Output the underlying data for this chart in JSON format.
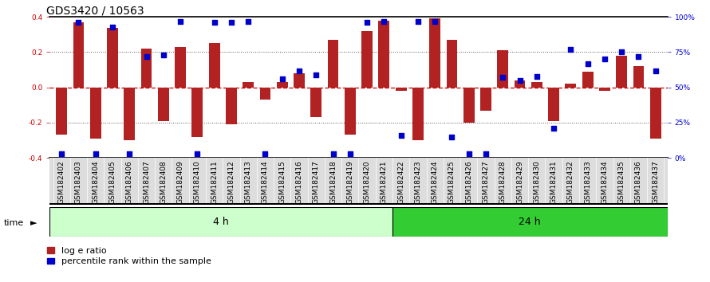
{
  "title": "GDS3420 / 10563",
  "samples": [
    "GSM182402",
    "GSM182403",
    "GSM182404",
    "GSM182405",
    "GSM182406",
    "GSM182407",
    "GSM182408",
    "GSM182409",
    "GSM182410",
    "GSM182411",
    "GSM182412",
    "GSM182413",
    "GSM182414",
    "GSM182415",
    "GSM182416",
    "GSM182417",
    "GSM182418",
    "GSM182419",
    "GSM182420",
    "GSM182421",
    "GSM182422",
    "GSM182423",
    "GSM182424",
    "GSM182425",
    "GSM182426",
    "GSM182427",
    "GSM182428",
    "GSM182429",
    "GSM182430",
    "GSM182431",
    "GSM182432",
    "GSM182433",
    "GSM182434",
    "GSM182435",
    "GSM182436",
    "GSM182437"
  ],
  "log_ratios": [
    -0.27,
    0.37,
    -0.29,
    0.34,
    -0.3,
    0.22,
    -0.19,
    0.23,
    -0.28,
    0.25,
    -0.21,
    0.03,
    -0.07,
    0.03,
    0.08,
    -0.17,
    0.27,
    -0.27,
    0.32,
    0.38,
    -0.02,
    -0.3,
    0.39,
    0.27,
    -0.2,
    -0.13,
    0.21,
    0.04,
    0.03,
    -0.19,
    0.02,
    0.09,
    -0.02,
    0.18,
    0.12,
    -0.29
  ],
  "percentile_ranks": [
    3,
    96,
    3,
    93,
    3,
    72,
    73,
    97,
    3,
    96,
    96,
    97,
    3,
    56,
    62,
    59,
    3,
    3,
    96,
    97,
    16,
    97,
    97,
    15,
    3,
    3,
    57,
    55,
    58,
    21,
    77,
    67,
    70,
    75,
    72,
    62
  ],
  "group1_count": 20,
  "group1_label": "4 h",
  "group2_label": "24 h",
  "bar_color": "#b22222",
  "dot_color": "#0000cc",
  "ylim": [
    -0.4,
    0.4
  ],
  "yticks_left": [
    -0.4,
    -0.2,
    0.0,
    0.2,
    0.4
  ],
  "yticks_right_pct": [
    0,
    25,
    50,
    75,
    100
  ],
  "right_ylabels": [
    "0%",
    "25%",
    "50%",
    "75%",
    "100%"
  ],
  "hline_color": "#cc0000",
  "dotted_color": "#555555",
  "group1_bg": "#ccffcc",
  "group2_bg": "#33cc33",
  "label_bg": "#dddddd",
  "title_fontsize": 10,
  "tick_fontsize": 6.5,
  "label_fontsize": 8,
  "time_fontsize": 9
}
